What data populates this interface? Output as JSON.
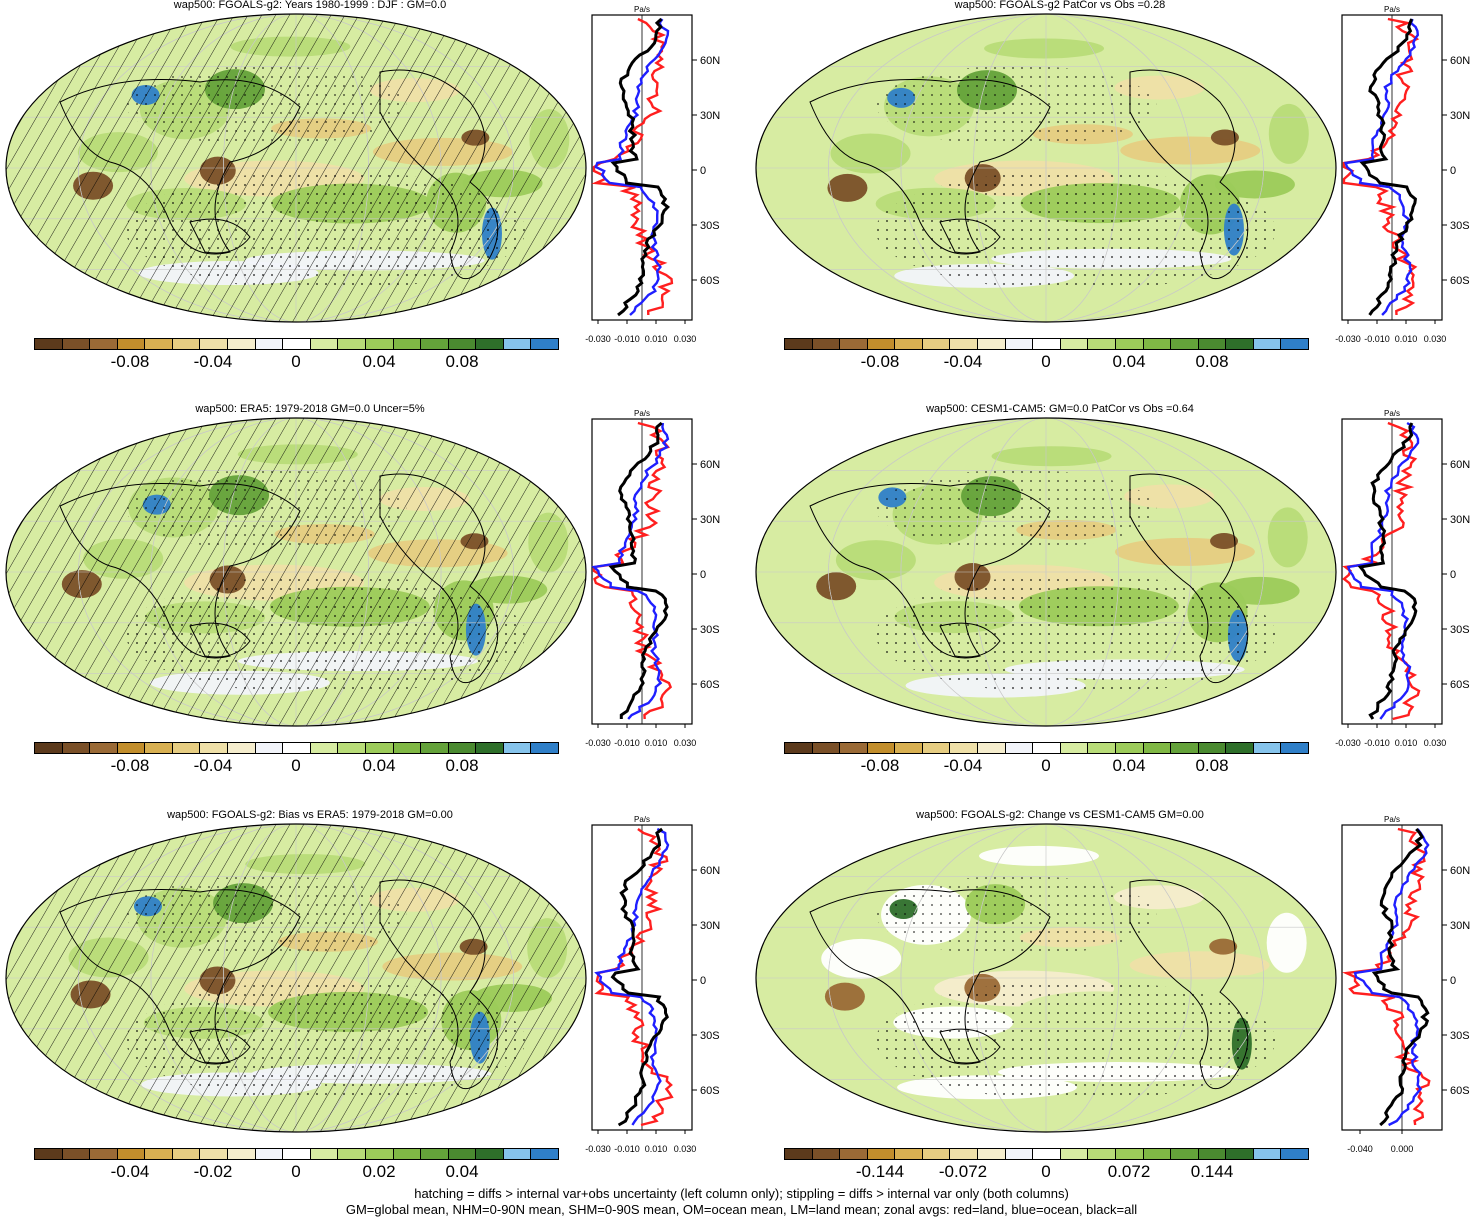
{
  "colors": {
    "palette": [
      "#5c3a1c",
      "#7a5028",
      "#9a6a36",
      "#c28e2c",
      "#d8b052",
      "#e6cd82",
      "#efe0a8",
      "#f5edcd",
      "#f2f4fa",
      "#ffffff",
      "#d7eca2",
      "#b8dc78",
      "#9ccb5a",
      "#80b845",
      "#64a23a",
      "#4a8a30",
      "#2e6f2a",
      "#86c4ec",
      "#2f7fc8"
    ],
    "land_line": "#ff1f1f",
    "ocean_line": "#1f1fff",
    "all_line": "#000000"
  },
  "zonal_ticks": {
    "lat_labels": [
      "60N",
      "30N",
      "0",
      "30S",
      "60S"
    ],
    "units": "Pa/s",
    "x_labels_std": [
      "-0.030",
      "-0.010",
      "0.010",
      "0.030"
    ],
    "x_labels_change": [
      "-0.040",
      "0.000"
    ]
  },
  "panels": [
    {
      "title": "wap500: FGOALS-g2: Years 1980-1999 : DJF : GM=0.0",
      "cbar_labels": [
        "-0.08",
        "-0.04",
        "0",
        "0.04",
        "0.08"
      ]
    },
    {
      "title": "wap500: FGOALS-g2 PatCor vs Obs =0.28",
      "cbar_labels": [
        "-0.08",
        "-0.04",
        "0",
        "0.04",
        "0.08"
      ]
    },
    {
      "title": "wap500: ERA5: 1979-2018 GM=0.0 Uncer=5%",
      "cbar_labels": [
        "-0.08",
        "-0.04",
        "0",
        "0.04",
        "0.08"
      ]
    },
    {
      "title": "wap500: CESM1-CAM5: GM=0.0 PatCor vs Obs =0.64",
      "cbar_labels": [
        "-0.08",
        "-0.04",
        "0",
        "0.04",
        "0.08"
      ]
    },
    {
      "title": "wap500: FGOALS-g2: Bias vs ERA5: 1979-2018 GM=0.00",
      "cbar_labels": [
        "-0.04",
        "-0.02",
        "0",
        "0.02",
        "0.04"
      ]
    },
    {
      "title": "wap500: FGOALS-g2: Change vs CESM1-CAM5 GM=0.00",
      "cbar_labels": [
        "-0.144",
        "-0.072",
        "0",
        "0.072",
        "0.144"
      ]
    }
  ],
  "footer": {
    "line1": "hatching = diffs > internal var+obs uncertainty (left column only); stippling = diffs > internal var only (both columns)",
    "line2": "GM=global mean, NHM=0-90N mean, SHM=0-90S mean, OM=ocean mean, LM=land mean; zonal avgs: red=land, blue=ocean, black=all"
  }
}
